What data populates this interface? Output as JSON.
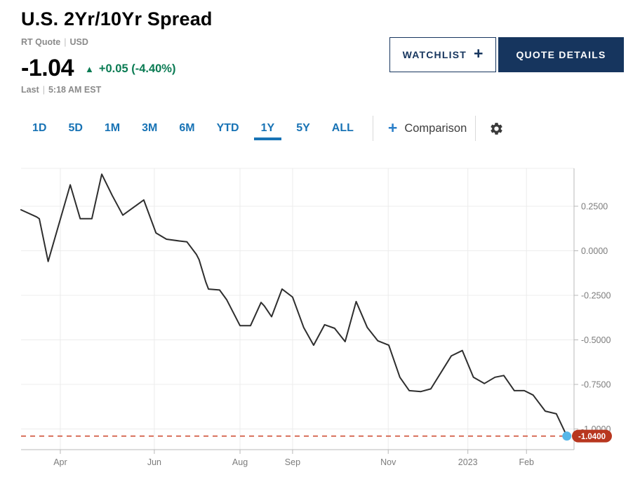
{
  "header": {
    "title": "U.S. 2Yr/10Yr Spread",
    "quote_type": "RT Quote",
    "separator": "|",
    "currency": "USD",
    "price": "-1.04",
    "change_arrow": "▲",
    "change": "+0.05 (-4.40%)",
    "last_label": "Last",
    "last_time": "5:18 AM EST",
    "buttons": {
      "watchlist": "WATCHLIST",
      "watchlist_plus": "+",
      "quote_details": "QUOTE DETAILS"
    }
  },
  "toolbar": {
    "tabs": [
      {
        "label": "1D",
        "active": false
      },
      {
        "label": "5D",
        "active": false
      },
      {
        "label": "1M",
        "active": false
      },
      {
        "label": "3M",
        "active": false
      },
      {
        "label": "6M",
        "active": false
      },
      {
        "label": "YTD",
        "active": false
      },
      {
        "label": "1Y",
        "active": true
      },
      {
        "label": "5Y",
        "active": false
      },
      {
        "label": "ALL",
        "active": false
      }
    ],
    "comparison_plus": "+",
    "comparison_label": "Comparison",
    "settings_icon": "gear"
  },
  "colors": {
    "accent_blue": "#1873b5",
    "navy": "#16355e",
    "green": "#0a7b53",
    "muted_text": "#8a8a8a",
    "chart_line": "#2e2e2e",
    "grid": "#ececec",
    "axis": "#b8b8b8",
    "axis_text": "#7c7c7c",
    "last_line": "#cf4f35",
    "last_dot": "#57b7e9",
    "badge_bg": "#b8371f",
    "badge_text": "#ffffff"
  },
  "chart_data": {
    "type": "line",
    "title": "U.S. 2Yr/10Yr Spread — 1Y",
    "xlabel": "",
    "ylabel": "",
    "ylim": [
      -1.12,
      0.46
    ],
    "grid": true,
    "legend": "none",
    "y_ticks": [
      {
        "value": 0.25,
        "label": "0.2500"
      },
      {
        "value": 0.0,
        "label": "0.0000"
      },
      {
        "value": -0.25,
        "label": "-0.2500"
      },
      {
        "value": -0.5,
        "label": "-0.5000"
      },
      {
        "value": -0.75,
        "label": "-0.7500"
      },
      {
        "value": -1.0,
        "label": "-1.0000"
      }
    ],
    "x_ticks": [
      {
        "pos": 0.071,
        "label": "Apr"
      },
      {
        "pos": 0.241,
        "label": "Jun"
      },
      {
        "pos": 0.396,
        "label": "Aug"
      },
      {
        "pos": 0.491,
        "label": "Sep"
      },
      {
        "pos": 0.664,
        "label": "Nov"
      },
      {
        "pos": 0.808,
        "label": "2023"
      },
      {
        "pos": 0.914,
        "label": "Feb"
      }
    ],
    "series": [
      {
        "name": "U.S. 2Yr/10Yr Spread",
        "points": [
          [
            0.0,
            0.23
          ],
          [
            0.028,
            0.19
          ],
          [
            0.033,
            0.18
          ],
          [
            0.049,
            -0.06
          ],
          [
            0.089,
            0.37
          ],
          [
            0.107,
            0.18
          ],
          [
            0.128,
            0.18
          ],
          [
            0.146,
            0.43
          ],
          [
            0.165,
            0.31
          ],
          [
            0.184,
            0.2
          ],
          [
            0.222,
            0.285
          ],
          [
            0.244,
            0.1
          ],
          [
            0.263,
            0.065
          ],
          [
            0.286,
            0.055
          ],
          [
            0.3,
            0.05
          ],
          [
            0.317,
            -0.02
          ],
          [
            0.322,
            -0.05
          ],
          [
            0.334,
            -0.175
          ],
          [
            0.339,
            -0.215
          ],
          [
            0.359,
            -0.22
          ],
          [
            0.372,
            -0.275
          ],
          [
            0.396,
            -0.42
          ],
          [
            0.415,
            -0.42
          ],
          [
            0.434,
            -0.29
          ],
          [
            0.44,
            -0.31
          ],
          [
            0.453,
            -0.37
          ],
          [
            0.472,
            -0.215
          ],
          [
            0.491,
            -0.26
          ],
          [
            0.511,
            -0.43
          ],
          [
            0.529,
            -0.53
          ],
          [
            0.549,
            -0.415
          ],
          [
            0.567,
            -0.435
          ],
          [
            0.586,
            -0.51
          ],
          [
            0.606,
            -0.285
          ],
          [
            0.626,
            -0.43
          ],
          [
            0.645,
            -0.505
          ],
          [
            0.665,
            -0.53
          ],
          [
            0.685,
            -0.71
          ],
          [
            0.702,
            -0.785
          ],
          [
            0.723,
            -0.79
          ],
          [
            0.741,
            -0.775
          ],
          [
            0.778,
            -0.59
          ],
          [
            0.798,
            -0.56
          ],
          [
            0.818,
            -0.71
          ],
          [
            0.838,
            -0.745
          ],
          [
            0.857,
            -0.71
          ],
          [
            0.873,
            -0.7
          ],
          [
            0.892,
            -0.785
          ],
          [
            0.91,
            -0.785
          ],
          [
            0.926,
            -0.81
          ],
          [
            0.948,
            -0.9
          ],
          [
            0.968,
            -0.915
          ],
          [
            0.987,
            -1.04
          ]
        ]
      }
    ],
    "last": {
      "value": -1.04,
      "label": "-1.0400"
    }
  }
}
